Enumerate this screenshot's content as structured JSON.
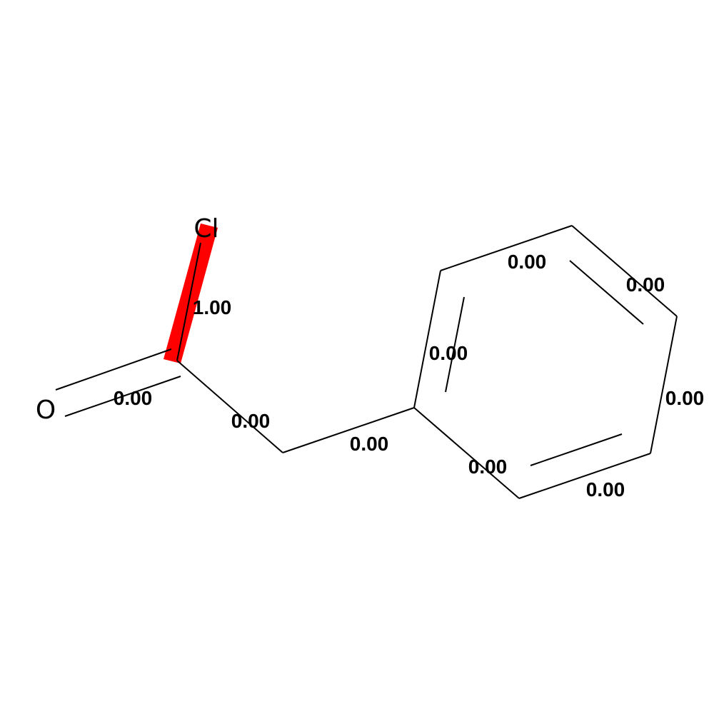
{
  "molecule": {
    "highlight_color": "#ff0000",
    "atoms": [
      {
        "id": "cl",
        "symbol": "Cl"
      },
      {
        "id": "o",
        "symbol": "O"
      },
      {
        "id": "c1",
        "symbol": ""
      },
      {
        "id": "c2",
        "symbol": ""
      },
      {
        "id": "c3",
        "symbol": ""
      },
      {
        "id": "c4",
        "symbol": ""
      },
      {
        "id": "c5",
        "symbol": ""
      },
      {
        "id": "c6",
        "symbol": ""
      },
      {
        "id": "c7",
        "symbol": ""
      },
      {
        "id": "c8",
        "symbol": ""
      }
    ],
    "bonds": [
      {
        "id": "c1-cl",
        "from": "c1",
        "to": "cl",
        "order": 1,
        "weight": "1.00",
        "highlighted": true
      },
      {
        "id": "c1-o",
        "from": "c1",
        "to": "o",
        "order": 2,
        "weight": "0.00",
        "highlighted": false
      },
      {
        "id": "c1-c2",
        "from": "c1",
        "to": "c2",
        "order": 1,
        "weight": "0.00",
        "highlighted": false
      },
      {
        "id": "c2-c3",
        "from": "c2",
        "to": "c3",
        "order": 1,
        "weight": "0.00",
        "highlighted": false
      },
      {
        "id": "c3-c4",
        "from": "c3",
        "to": "c4",
        "order": 2,
        "weight": "0.00",
        "highlighted": false
      },
      {
        "id": "c4-c5",
        "from": "c4",
        "to": "c5",
        "order": 1,
        "weight": "0.00",
        "highlighted": false
      },
      {
        "id": "c5-c6",
        "from": "c5",
        "to": "c6",
        "order": 2,
        "weight": "0.00",
        "highlighted": false
      },
      {
        "id": "c6-c7",
        "from": "c6",
        "to": "c7",
        "order": 1,
        "weight": "0.00",
        "highlighted": false
      },
      {
        "id": "c7-c8",
        "from": "c7",
        "to": "c8",
        "order": 2,
        "weight": "0.00",
        "highlighted": false
      },
      {
        "id": "c8-c3",
        "from": "c8",
        "to": "c3",
        "order": 1,
        "weight": "0.00",
        "highlighted": false
      }
    ]
  }
}
